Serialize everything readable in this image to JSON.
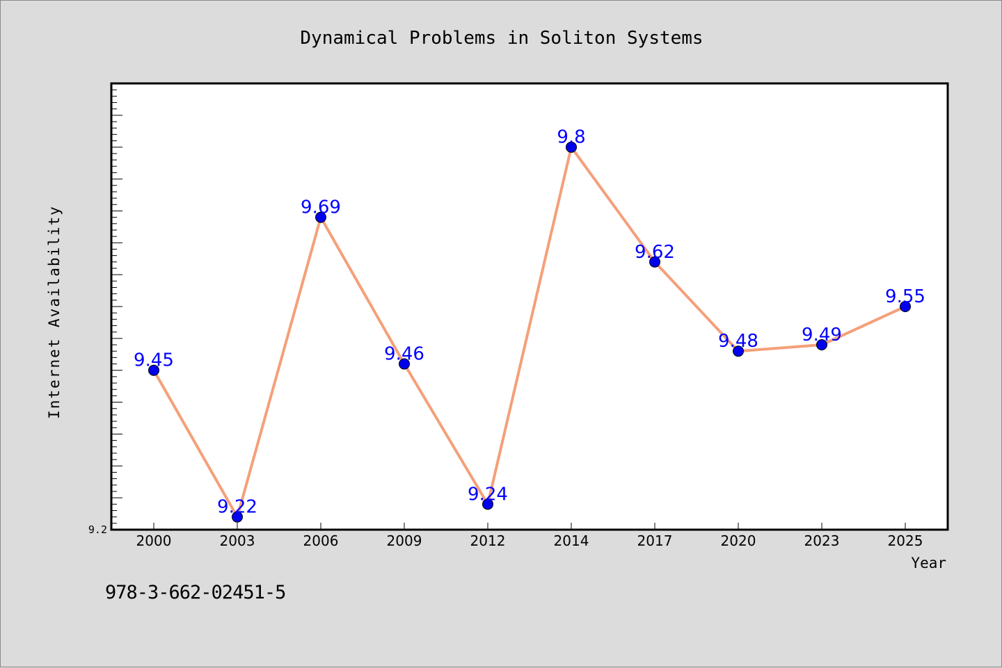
{
  "chart_data": {
    "type": "line",
    "title": "Dynamical Problems in Soliton Systems",
    "xlabel": "Year",
    "ylabel": "Internet Availability",
    "categories": [
      "2000",
      "2003",
      "2006",
      "2009",
      "2012",
      "2014",
      "2017",
      "2020",
      "2023",
      "2025"
    ],
    "series": [
      {
        "values": [
          9.45,
          9.22,
          9.69,
          9.46,
          9.24,
          9.8,
          9.62,
          9.48,
          9.49,
          9.55
        ]
      }
    ],
    "ylim": [
      9.2,
      9.9
    ],
    "y_tick_labels": [
      "9.2"
    ],
    "data_labels": [
      "9.45",
      "9.22",
      "9.69",
      "9.46",
      "9.24",
      "9.8",
      "9.62",
      "9.48",
      "9.49",
      "9.55"
    ],
    "grid": false,
    "colors": {
      "line": "#f4a07a",
      "marker": "#0000ee",
      "label": "#0000ff"
    }
  },
  "footer": {
    "code": "978-3-662-02451-5"
  }
}
